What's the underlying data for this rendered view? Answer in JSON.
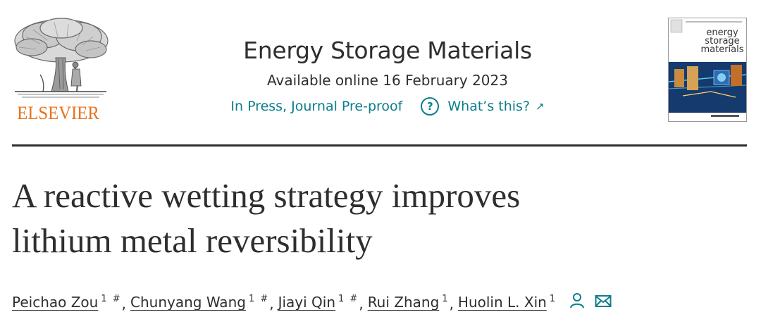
{
  "publisher": {
    "logo_icon": "elsevier-tree-logo",
    "name": "ELSEVIER",
    "brand_color": "#e9711c"
  },
  "journal": {
    "title": "Energy Storage Materials",
    "online_date": "Available online 16 February 2023",
    "status_text": "In Press, Journal Pre-proof",
    "help_icon": "question-circle-icon",
    "help_glyph": "?",
    "whats_this": "What’s this?",
    "external_icon": "external-link-icon",
    "external_glyph": "↗",
    "link_color": "#0c7d8c",
    "cover": {
      "title_line1": "energy",
      "title_line2": "storage",
      "title_line3": "materials"
    }
  },
  "article": {
    "title_line1": "A reactive wetting strategy improves",
    "title_line2": "lithium metal reversibility"
  },
  "authors": [
    {
      "name": "Peichao Zou",
      "sup": "1 #"
    },
    {
      "name": "Chunyang Wang",
      "sup": "1 #"
    },
    {
      "name": "Jiayi Qin",
      "sup": "1 #"
    },
    {
      "name": "Rui Zhang",
      "sup": "1"
    },
    {
      "name": "Huolin L. Xin",
      "sup": "1"
    }
  ],
  "author_separator": ",",
  "author_icons": {
    "person": "person-icon",
    "email": "envelope-icon"
  }
}
